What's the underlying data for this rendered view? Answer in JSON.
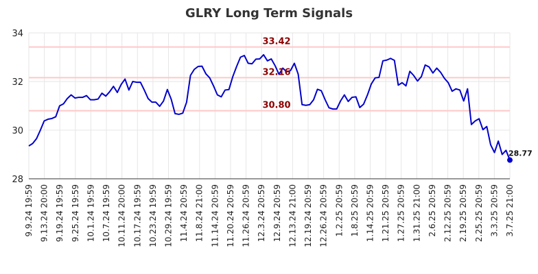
{
  "chart_data": {
    "type": "line",
    "title": "GLRY Long Term Signals",
    "ylim": [
      28,
      34
    ],
    "yticks": [
      28,
      30,
      32,
      34
    ],
    "grid": true,
    "x_tick_labels": [
      "9.9.24 19:59",
      "9.13.24 20:00",
      "9.19.24 19:59",
      "9.25.24 19:59",
      "10.1.24 19:59",
      "10.7.24 19:59",
      "10.11.24 20:00",
      "10.17.24 19:59",
      "10.23.24 19:59",
      "10.29.24 19:59",
      "11.4.24 20:59",
      "11.8.24 21:00",
      "11.14.24 20:59",
      "11.20.24 20:59",
      "11.26.24 20:59",
      "12.3.24 20:59",
      "12.9.24 20:59",
      "12.13.24 21:00",
      "12.19.24 20:59",
      "12.26.24 20:59",
      "1.2.25 20:59",
      "1.8.25 20:59",
      "1.14.25 20:59",
      "1.21.25 20:59",
      "1.27.25 20:59",
      "1.31.25 21:00",
      "2.6.25 20:59",
      "2.12.25 20:59",
      "2.19.25 20:59",
      "2.25.25 20:59",
      "3.3.25 20:59",
      "3.7.25 21:00"
    ],
    "signal_lines": [
      {
        "value": 33.42,
        "label": "33.42"
      },
      {
        "value": 32.16,
        "label": "32.16"
      },
      {
        "value": 30.8,
        "label": "30.80"
      }
    ],
    "series": [
      {
        "color": "#0000cc",
        "values": [
          29.35,
          29.45,
          29.65,
          30.0,
          30.38,
          30.45,
          30.48,
          30.55,
          31.0,
          31.08,
          31.3,
          31.45,
          31.32,
          31.35,
          31.35,
          31.42,
          31.25,
          31.25,
          31.28,
          31.52,
          31.4,
          31.58,
          31.8,
          31.55,
          31.88,
          32.1,
          31.65,
          32.0,
          31.97,
          31.97,
          31.65,
          31.3,
          31.15,
          31.15,
          30.98,
          31.2,
          31.67,
          31.27,
          30.68,
          30.65,
          30.7,
          31.15,
          32.25,
          32.5,
          32.62,
          32.63,
          32.32,
          32.15,
          31.82,
          31.45,
          31.37,
          31.65,
          31.67,
          32.2,
          32.62,
          33.0,
          33.07,
          32.75,
          32.73,
          32.92,
          32.93,
          33.1,
          32.85,
          32.93,
          32.65,
          32.3,
          32.55,
          32.4,
          32.45,
          32.75,
          32.3,
          31.05,
          31.02,
          31.05,
          31.25,
          31.68,
          31.62,
          31.25,
          30.92,
          30.87,
          30.87,
          31.2,
          31.45,
          31.18,
          31.35,
          31.37,
          30.93,
          31.07,
          31.45,
          31.9,
          32.15,
          32.17,
          32.85,
          32.88,
          32.95,
          32.87,
          31.85,
          31.95,
          31.82,
          32.42,
          32.25,
          32.02,
          32.2,
          32.68,
          32.6,
          32.35,
          32.55,
          32.38,
          32.13,
          31.95,
          31.6,
          31.7,
          31.65,
          31.2,
          31.7,
          30.23,
          30.38,
          30.47,
          30.02,
          30.15,
          29.4,
          29.08,
          29.55,
          29.0,
          29.17,
          28.77
        ]
      }
    ],
    "last_value_label": "28.77"
  }
}
